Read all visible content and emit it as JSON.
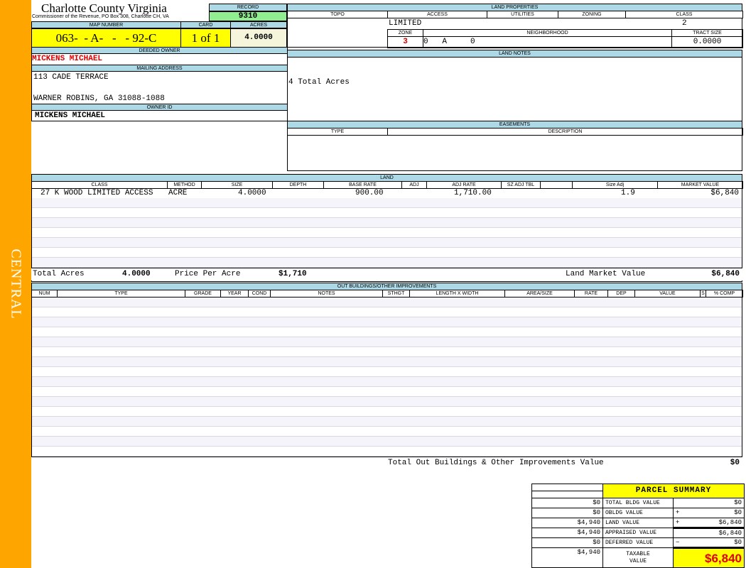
{
  "sidebar": {
    "label": "CENTRAL"
  },
  "header": {
    "title": "Charlotte County Virginia",
    "subtitle": "Commissioner of the Revenue, PO Box 308, Charlotte CH, VA"
  },
  "record": {
    "label": "RECORD",
    "value": "9310"
  },
  "map": {
    "label": "MAP NUMBER",
    "value": "063-  - A-   -   - 92-C",
    "card_label": "CARD",
    "card": "1 of 1",
    "acres_label": "ACRES",
    "acres": "4.0000"
  },
  "owner": {
    "deeded_label": "DEEDED OWNER",
    "deeded": "MICKENS MICHAEL",
    "mailing_label": "MAILING ADDRESS",
    "address1": "113 CADE TERRACE",
    "address2": "WARNER ROBINS, GA 31088-1088",
    "id_label": "OWNER ID",
    "id": "MICKENS MICHAEL"
  },
  "land_properties": {
    "label": "LAND PROPERTIES",
    "columns": [
      "TOPO",
      "ACCESS",
      "UTILITIES",
      "ZONING",
      "CLASS"
    ],
    "access": "LIMITED",
    "class": "2",
    "zone_label": "ZONE",
    "neighborhood_label": "NEIGHBORHOOD",
    "tract_label": "TRACT SIZE",
    "zone": "3",
    "zone_rest": "0   A     0",
    "tract": "0.0000"
  },
  "land_notes": {
    "label": "LAND NOTES",
    "text": "4 Total Acres"
  },
  "easements": {
    "label": "EASEMENTS",
    "columns": [
      "TYPE",
      "DESCRIPTION"
    ]
  },
  "land": {
    "label": "LAND",
    "columns": [
      "CLASS",
      "METHOD",
      "SIZE",
      "DEPTH",
      "BASE RATE",
      "ADJ",
      "ADJ RATE",
      "SZ ADJ TBL",
      "",
      "Size Adj",
      "MARKET VALUE"
    ],
    "row": {
      "class": "27 K WOOD LIMITED ACCESS",
      "method": "ACRE",
      "size": "4.0000",
      "base_rate": "900.00",
      "adj_rate": "1,710.00",
      "size_adj": "1.9",
      "market_value": "$6,840"
    },
    "total_acres_label": "Total Acres",
    "total_acres": "4.0000",
    "ppa_label": "Price Per Acre",
    "ppa": "$1,710",
    "lmv_label": "Land Market Value",
    "lmv": "$6,840"
  },
  "outbuildings": {
    "label": "OUT BUILDINGS/OTHER IMPROVEMENTS",
    "columns": [
      "NUM",
      "TYPE",
      "GRADE",
      "YEAR",
      "COND",
      "NOTES",
      "STHGT",
      "LENGTH X WIDTH",
      "AREA/SIZE",
      "RATE",
      "DEP",
      "VALUE",
      "S",
      "% COMP"
    ],
    "total_label": "Total Out Buildings & Other Improvements Value",
    "total": "$0"
  },
  "summary": {
    "title": "PARCEL SUMMARY",
    "rows": [
      {
        "prior": "$0",
        "label": "TOTAL BLDG VALUE",
        "op": "",
        "value": "$0"
      },
      {
        "prior": "$0",
        "label": "OBLDG VALUE",
        "op": "+",
        "value": "$0"
      },
      {
        "prior": "$4,940",
        "label": "LAND VALUE",
        "op": "+",
        "value": "$6,840"
      },
      {
        "prior": "$4,940",
        "label": "APPRAISED VALUE",
        "op": "",
        "value": "$6,840"
      },
      {
        "prior": "$0",
        "label": "DEFERRED VALUE",
        "op": "−",
        "value": "$0"
      }
    ],
    "taxable_prior": "$4,940",
    "taxable_label": "TAXABLE VALUE",
    "taxable": "$6,840"
  },
  "colors": {
    "sidebar": "#ffa500",
    "header_blue": "#add8e6",
    "record_green": "#90ee90",
    "highlight_yellow": "#ffff00",
    "owner_red": "#e00000"
  }
}
